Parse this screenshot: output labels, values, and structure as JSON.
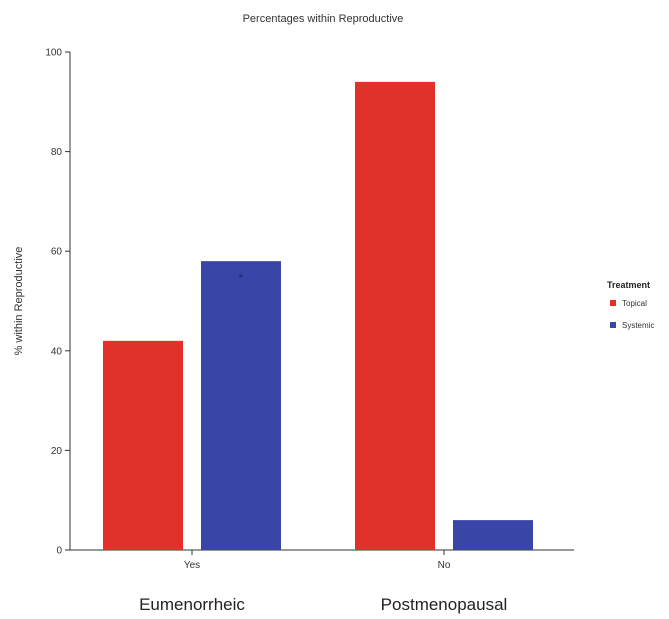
{
  "chart_data": {
    "type": "bar",
    "title": "Percentages within Reproductive",
    "xlabel": "",
    "ylabel": "% within Reproductive",
    "categories": [
      "Yes",
      "No"
    ],
    "group_labels": [
      "Eumenorrheic",
      "Postmenopausal"
    ],
    "ylim": [
      0,
      100
    ],
    "yticks": [
      "0",
      "20",
      "40",
      "60",
      "80",
      "100"
    ],
    "series": [
      {
        "name": "Topical",
        "color": "#e0312b",
        "values": [
          42,
          94
        ]
      },
      {
        "name": "Systemic",
        "color": "#3a45a8",
        "values": [
          58,
          6
        ]
      }
    ],
    "legend": {
      "title": "Treatment",
      "position": "right"
    },
    "annotations": [
      {
        "text": "*",
        "category": "Yes",
        "series": "Systemic",
        "y": 55
      }
    ],
    "grid": false
  }
}
